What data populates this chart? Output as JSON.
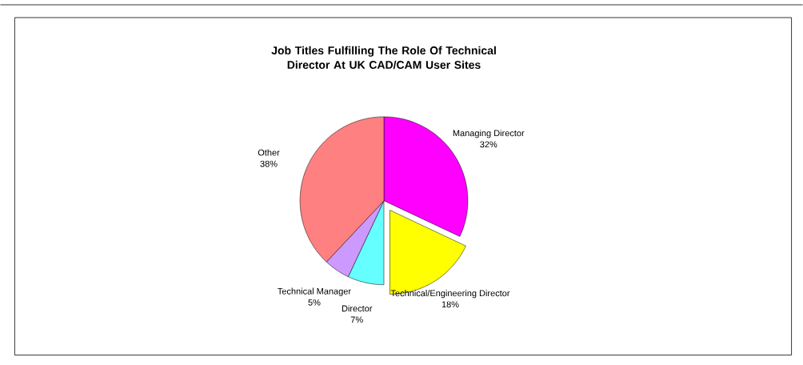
{
  "chart_data": {
    "type": "pie",
    "title": "Job Titles Fulfilling The Role Of Technical Director At UK CAD/CAM User Sites",
    "categories": [
      "Managing Director",
      "Technical/Engineering Director",
      "Director",
      "Technical Manager",
      "Other"
    ],
    "values": [
      32,
      18,
      7,
      5,
      38
    ],
    "value_labels": [
      "32%",
      "18%",
      "7%",
      "5%",
      "38%"
    ],
    "colors": [
      "#ff00ff",
      "#ffff00",
      "#66ffff",
      "#cc99ff",
      "#ff8080"
    ]
  }
}
